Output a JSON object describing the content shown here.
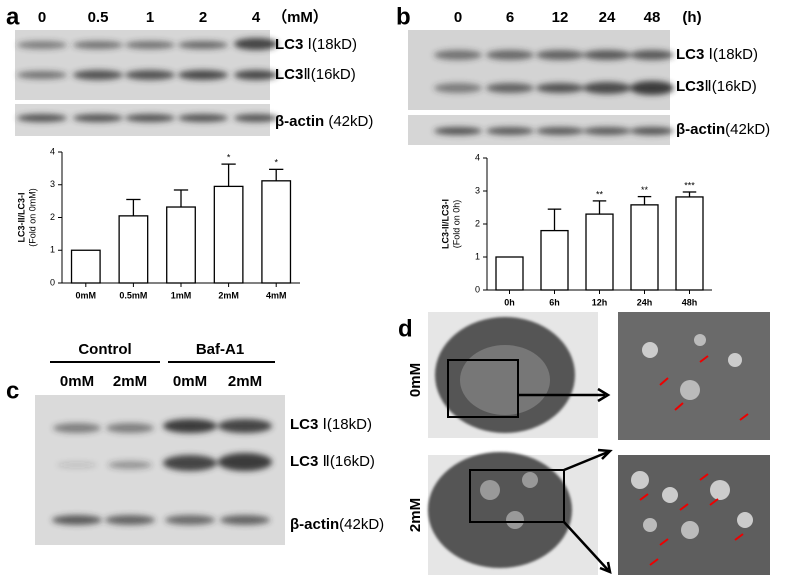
{
  "panels": {
    "a": {
      "label": "a",
      "lanes": [
        "0",
        "0.5",
        "1",
        "2",
        "4"
      ],
      "unit": "（mM）",
      "bands": [
        {
          "name": "LC3",
          "detail": " Ⅰ(18kD)"
        },
        {
          "name": "LC3",
          "detail": "Ⅱ(16kD)"
        },
        {
          "name": "β-actin",
          "detail": " (42kD)"
        }
      ]
    },
    "b": {
      "label": "b",
      "lanes": [
        "0",
        "6",
        "12",
        "24",
        "48"
      ],
      "unit": "(h)",
      "bands": [
        {
          "name": "LC3",
          "detail": " Ⅰ(18kD)"
        },
        {
          "name": "LC3",
          "detail": "Ⅱ(16kD)"
        },
        {
          "name": "β-actin",
          "detail": "(42kD)"
        }
      ]
    },
    "c": {
      "label": "c",
      "groups": [
        "Control",
        "Baf-A1"
      ],
      "lanes": [
        "0mM",
        "2mM",
        "0mM",
        "2mM"
      ],
      "bands": [
        {
          "name": "LC3",
          "detail": " Ⅰ(18kD)"
        },
        {
          "name": "LC3",
          "detail": " Ⅱ(16kD)"
        },
        {
          "name": "β-actin",
          "detail": "(42kD)"
        }
      ]
    },
    "d": {
      "label": "d",
      "rows": [
        "0mM",
        "2mM"
      ]
    }
  },
  "chart_data": [
    {
      "type": "bar",
      "ylabel": "LC3-II/LC3-I",
      "ylabel_note": "(Fold on 0mM)",
      "categories": [
        "0mM",
        "0.5mM",
        "1mM",
        "2mM",
        "4mM"
      ],
      "values": [
        1,
        2.05,
        2.32,
        2.95,
        3.12
      ],
      "errors": [
        0,
        0.5,
        0.52,
        0.68,
        0.35
      ],
      "significance": [
        null,
        null,
        null,
        "*",
        "*"
      ],
      "color": "#ffffff",
      "ylim": [
        0,
        4
      ],
      "yticks": [
        0,
        1,
        2,
        3,
        4
      ]
    },
    {
      "type": "bar",
      "ylabel": "LC3-II/LC3-I",
      "ylabel_note": "(Fold on 0h)",
      "categories": [
        "0h",
        "6h",
        "12h",
        "24h",
        "48h"
      ],
      "values": [
        1,
        1.8,
        2.3,
        2.58,
        2.82
      ],
      "errors": [
        0,
        0.65,
        0.4,
        0.25,
        0.15
      ],
      "significance": [
        null,
        null,
        "**",
        "**",
        "***"
      ],
      "color": "#ffffff",
      "ylim": [
        0,
        4
      ],
      "yticks": [
        0,
        1,
        2,
        3,
        4
      ]
    }
  ]
}
